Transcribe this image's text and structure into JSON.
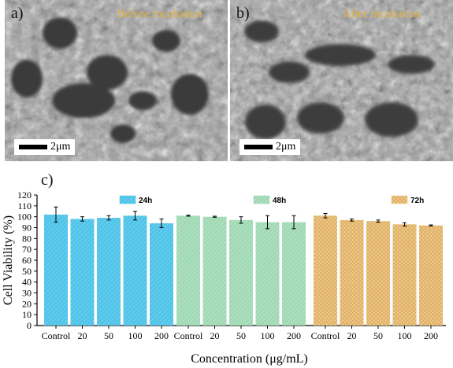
{
  "panels": [
    {
      "label": "a)",
      "caption": "Before incubation",
      "scale": "2μm"
    },
    {
      "label": "b)",
      "caption": "After incubation",
      "scale": "2μm"
    }
  ],
  "chart_label": "c)",
  "colors": {
    "h24": "#4fc3e8",
    "h48": "#9fd9b3",
    "h72": "#efc98a",
    "sem_caption": "#e3b23c"
  },
  "chart_data": {
    "type": "bar",
    "xlabel": "Concentration (μg/mL)",
    "ylabel": "Cell Viability (%)",
    "ylim": [
      0,
      120
    ],
    "yticks": [
      0,
      10,
      20,
      30,
      40,
      50,
      60,
      70,
      80,
      90,
      100,
      110,
      120
    ],
    "categories": [
      "Control",
      "20",
      "50",
      "100",
      "200"
    ],
    "legend_placement": "top, one label per group",
    "series": [
      {
        "name": "24h",
        "values": [
          102,
          98,
          99,
          101,
          94
        ],
        "errors": [
          7,
          2,
          2,
          4,
          4
        ]
      },
      {
        "name": "48h",
        "values": [
          101,
          100,
          97,
          95,
          95
        ],
        "errors": [
          0.5,
          0.5,
          3,
          6,
          6
        ]
      },
      {
        "name": "72h",
        "values": [
          101,
          97,
          96,
          93,
          92
        ],
        "errors": [
          2,
          1,
          1,
          1.5,
          0.5
        ]
      }
    ]
  }
}
